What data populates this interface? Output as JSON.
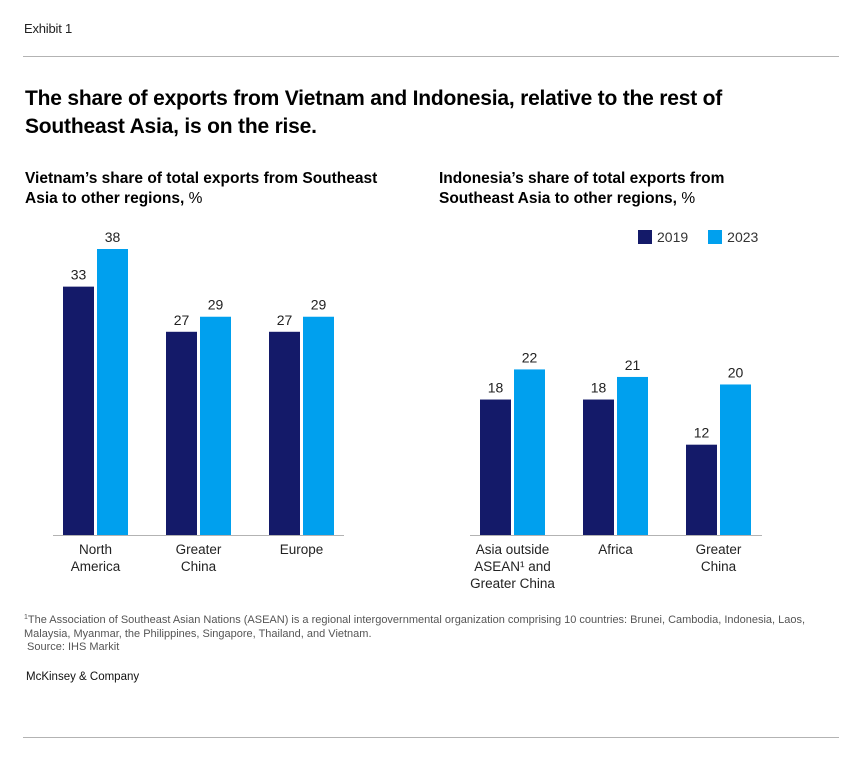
{
  "exhibit_label": "Exhibit 1",
  "headline": "The share of exports from Vietnam and Indonesia, relative to the rest of Southeast Asia, is on the rise.",
  "colors": {
    "series_2019": "#141a69",
    "series_2023": "#00a0ee",
    "axis": "#b3b3b3",
    "text": "#222222"
  },
  "legend": [
    {
      "label": "2019",
      "color": "#141a69"
    },
    {
      "label": "2023",
      "color": "#00a0ee"
    }
  ],
  "chart_data": [
    {
      "type": "bar",
      "title": "Vietnam’s share of total exports from Southeast Asia to other regions,",
      "unit": "%",
      "xlabel": "",
      "ylabel": "",
      "ylim": [
        0,
        38
      ],
      "grid": false,
      "categories": [
        [
          "North",
          "America"
        ],
        [
          "Greater",
          "China"
        ],
        [
          "Europe"
        ]
      ],
      "series": [
        {
          "name": "2019",
          "values": [
            33,
            27,
            27
          ]
        },
        {
          "name": "2023",
          "values": [
            38,
            29,
            29
          ]
        }
      ]
    },
    {
      "type": "bar",
      "title": "Indonesia’s share of total exports from Southeast Asia to other regions,",
      "unit": "%",
      "xlabel": "",
      "ylabel": "",
      "ylim": [
        0,
        38
      ],
      "grid": false,
      "legend_position": "top-right",
      "categories": [
        [
          "Asia outside",
          "ASEAN¹ and",
          "Greater China"
        ],
        [
          "Africa"
        ],
        [
          "Greater",
          "China"
        ]
      ],
      "series": [
        {
          "name": "2019",
          "values": [
            18,
            18,
            12
          ]
        },
        {
          "name": "2023",
          "values": [
            22,
            21,
            20
          ]
        }
      ]
    }
  ],
  "footnote": {
    "marker": "1",
    "text": "The Association of Southeast Asian Nations (ASEAN) is a regional intergovernmental organization comprising 10 countries: Brunei, Cambodia, Indonesia, Laos, Malaysia, Myanmar, the Philippines, Singapore, Thailand, and Vietnam."
  },
  "source": "Source: IHS Markit",
  "brand": "McKinsey & Company"
}
